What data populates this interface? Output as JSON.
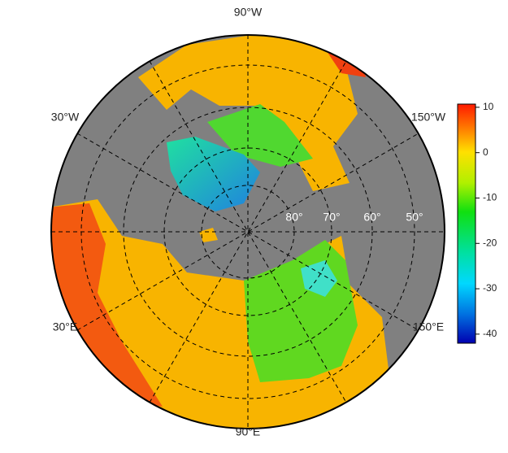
{
  "map": {
    "longitude_labels": {
      "top": "90°W",
      "upper_left": "30°W",
      "upper_right": "150°W",
      "lower_left": "30°E",
      "lower_right": "150°E",
      "bottom": "90°E"
    },
    "latitude_labels": [
      "80°",
      "70°",
      "60°",
      "50°"
    ]
  },
  "colorbar": {
    "lim": [
      -42,
      10.7
    ],
    "ticks": [
      10,
      0,
      -10,
      -20,
      -30,
      -40
    ]
  }
}
